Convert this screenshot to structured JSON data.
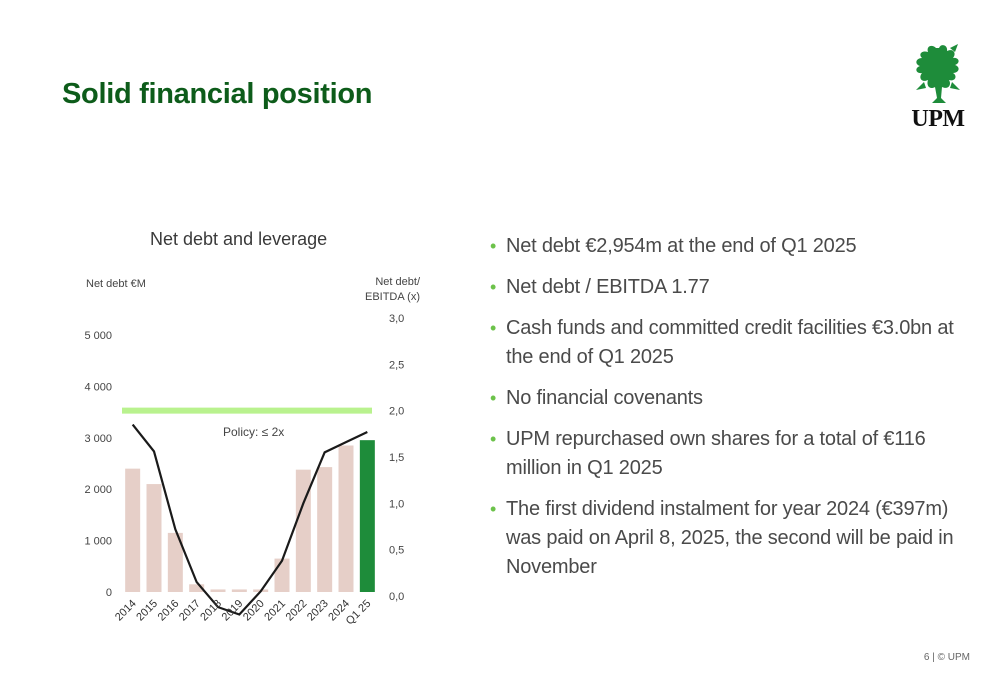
{
  "slide": {
    "title": "Solid financial position",
    "logo_text": "UPM",
    "footer": "6 | © UPM",
    "colors": {
      "title": "#0d5c1a",
      "bullet": "#6cc24a",
      "bar": "#e6cfc8",
      "bar_highlight": "#1e8c3a",
      "policy_line": "#b9f28e",
      "leverage_line": "#1a1a1a"
    }
  },
  "bullets": [
    "Net debt €2,954m at the end of Q1 2025",
    "Net debt / EBITDA 1.77",
    "Cash funds and committed credit facilities €3.0bn at the end of Q1 2025",
    "No financial covenants",
    "UPM repurchased own shares for a total of €116 million in Q1 2025",
    "The first dividend instalment for year 2024 (€397m) was paid on April 8, 2025, the second will be paid in November"
  ],
  "chart_data": {
    "type": "bar",
    "title": "Net debt and leverage",
    "ylabel": "Net debt €M",
    "y2label": "Net debt/ EBITDA (x)",
    "ylim": [
      0,
      5000
    ],
    "y2lim": [
      0,
      3.0
    ],
    "yticks": [
      "0",
      "1 000",
      "2 000",
      "3 000",
      "4 000",
      "5 000"
    ],
    "y2ticks": [
      "0,0",
      "0,5",
      "1,0",
      "1,5",
      "2,0",
      "2,5",
      "3,0"
    ],
    "categories": [
      "2014",
      "2015",
      "2016",
      "2017",
      "2018",
      "2019",
      "2020",
      "2021",
      "2022",
      "2023",
      "2024",
      "Q1 25"
    ],
    "series": [
      {
        "name": "Net debt",
        "values": [
          2400,
          2100,
          1150,
          150,
          50,
          50,
          50,
          650,
          2380,
          2430,
          2850,
          2954
        ]
      },
      {
        "name": "Net debt/EBITDA",
        "values": [
          1.85,
          1.56,
          0.72,
          0.15,
          -0.12,
          -0.2,
          0.05,
          0.38,
          1.0,
          1.55,
          1.66,
          1.77
        ]
      }
    ],
    "policy": {
      "label": "Policy: ≤ 2x",
      "value": 2.0
    },
    "grid": false
  }
}
